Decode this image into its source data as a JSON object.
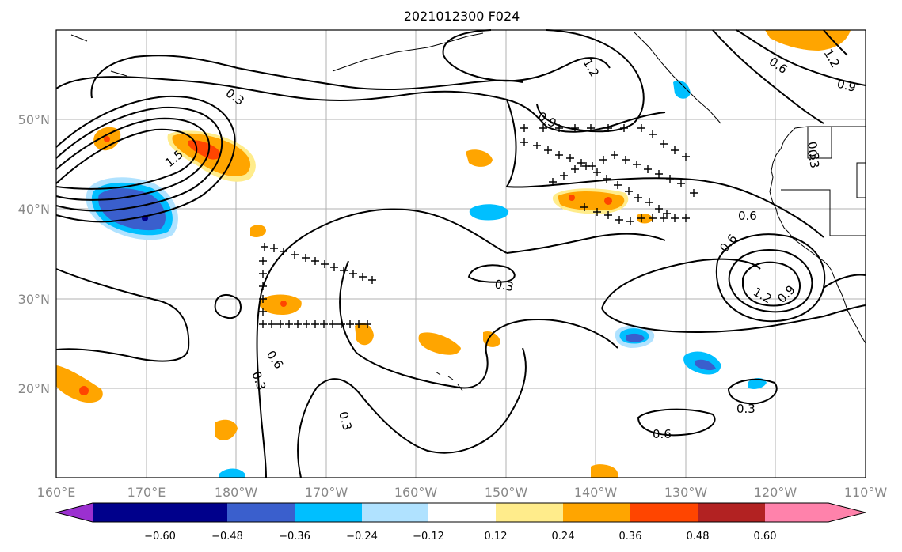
{
  "title": "2021012300 F024",
  "lat_labels": [
    "50°N",
    "40°N",
    "30°N",
    "20°N"
  ],
  "lon_labels": [
    "160°E",
    "170°E",
    "180°W",
    "170°W",
    "160°W",
    "150°W",
    "140°W",
    "130°W",
    "120°W",
    "110°W"
  ],
  "colorbar": {
    "ticks": [
      "−0.60",
      "−0.48",
      "−0.36",
      "−0.24",
      "−0.12",
      "0.12",
      "0.24",
      "0.36",
      "0.48",
      "0.60"
    ],
    "colors": [
      "#9b30d0",
      "#00008b",
      "#3a5fcd",
      "#00bfff",
      "#b0e2ff",
      "#ffffff",
      "#ffec8b",
      "#ffa500",
      "#ff4500",
      "#b22222",
      "#ff82ab"
    ]
  },
  "contour_labels": [
    "0.3",
    "1.5",
    "1.2",
    "0.9",
    "0.6",
    "0.9",
    "0.3",
    "0.6",
    "0.3",
    "0.3",
    "0.6",
    "0.6",
    "1.2",
    "0.9",
    "0.3",
    "0.3",
    "0.6",
    "1.2",
    "0.3"
  ],
  "colors": {
    "orange": "#ffa500",
    "light_yellow": "#ffec8b",
    "red": "#ff4500",
    "blue": "#3a5fcd",
    "cyan": "#00bfff",
    "light_blue": "#b0e2ff",
    "dark_blue": "#00008b"
  }
}
